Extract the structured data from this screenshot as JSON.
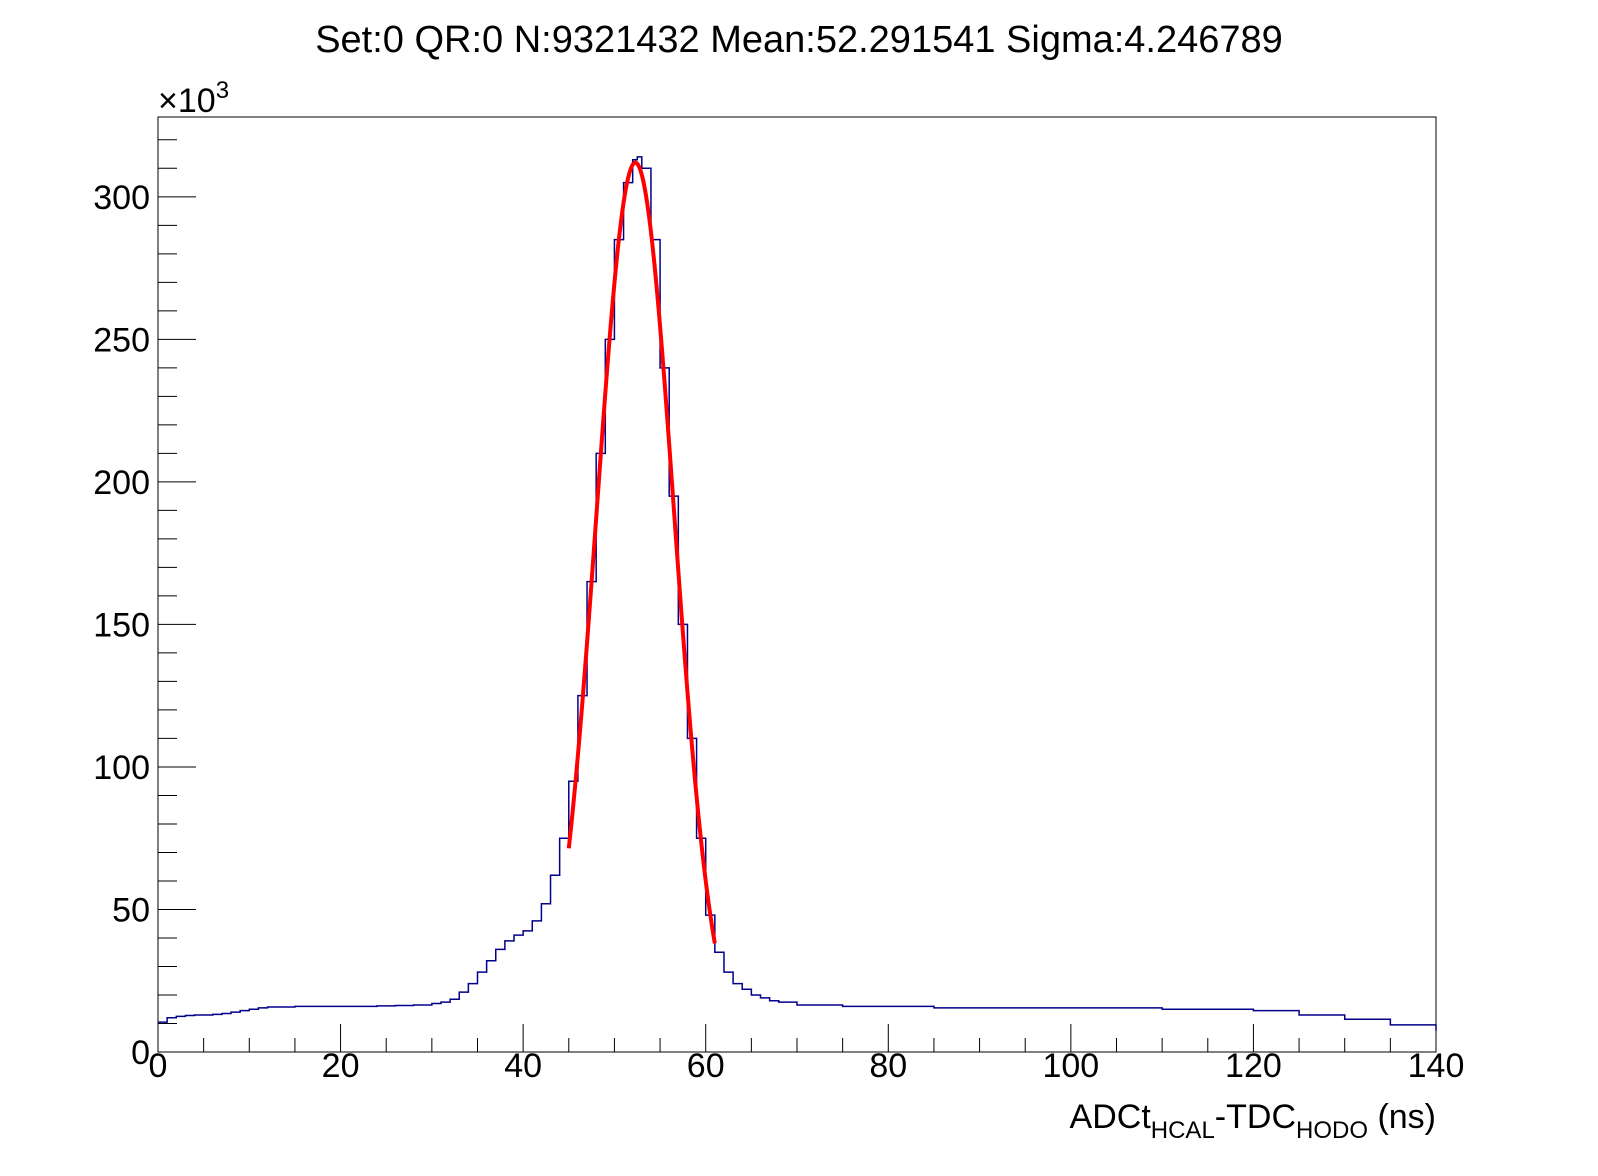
{
  "chart_data": {
    "type": "histogram",
    "title": "Set:0 QR:0 N:9321432 Mean:52.291541 Sigma:4.246789",
    "xlabel": {
      "parts": [
        {
          "text": "ADCt",
          "sub": false
        },
        {
          "text": "HCAL",
          "sub": true
        },
        {
          "text": "-TDC",
          "sub": false
        },
        {
          "text": "HODO",
          "sub": true
        },
        {
          "text": " (ns)",
          "sub": false
        }
      ]
    },
    "ylabel": "",
    "y_multiplier": {
      "base": "×10",
      "exp": "3"
    },
    "xlim": [
      0,
      140
    ],
    "ylim": [
      0,
      328
    ],
    "x_ticks": [
      0,
      20,
      40,
      60,
      80,
      100,
      120,
      140
    ],
    "x_tick_labels": [
      "0",
      "20",
      "40",
      "60",
      "80",
      "100",
      "120",
      "140"
    ],
    "y_ticks": [
      0,
      50,
      100,
      150,
      200,
      250,
      300
    ],
    "y_tick_labels": [
      "0",
      "50",
      "100",
      "150",
      "200",
      "250",
      "300"
    ],
    "grid": false,
    "legend": "none",
    "series": [
      {
        "kind": "step-histogram",
        "color": "#00008b",
        "x": [
          0,
          1,
          2,
          3,
          4,
          5,
          6,
          7,
          8,
          9,
          10,
          11,
          12,
          13,
          14,
          15,
          16,
          17,
          18,
          19,
          20,
          22,
          24,
          26,
          28,
          30,
          31,
          32,
          33,
          34,
          35,
          36,
          37,
          38,
          39,
          40,
          41,
          42,
          43,
          44,
          45,
          46,
          47,
          48,
          49,
          50,
          51,
          52,
          52.5,
          53,
          54,
          55,
          56,
          57,
          58,
          59,
          60,
          61,
          62,
          63,
          64,
          65,
          66,
          67,
          68,
          70,
          75,
          80,
          85,
          90,
          95,
          100,
          105,
          110,
          115,
          120,
          125,
          130,
          135,
          140
        ],
        "y": [
          10.5,
          12,
          12.5,
          12.8,
          13,
          13,
          13.2,
          13.5,
          14,
          14.5,
          15,
          15.5,
          15.8,
          15.8,
          15.8,
          16,
          16,
          16,
          16,
          16,
          16,
          16,
          16.2,
          16.3,
          16.5,
          17,
          17.5,
          18.5,
          21,
          24,
          28,
          32,
          36,
          39,
          41,
          42.5,
          46,
          52,
          62,
          75,
          95,
          125,
          165,
          210,
          250,
          285,
          305,
          313,
          314,
          310,
          285,
          240,
          195,
          150,
          110,
          75,
          48,
          35,
          28,
          24,
          22,
          20,
          19,
          18,
          17.5,
          16.5,
          16,
          16,
          15.5,
          15.5,
          15.5,
          15.5,
          15.5,
          15,
          15,
          14.5,
          13,
          11.5,
          9.5,
          7.5
        ]
      },
      {
        "kind": "gaussian-fit",
        "color": "#ff0000",
        "amplitude": 312,
        "mean": 52.291541,
        "sigma": 4.246789,
        "xrange": [
          45,
          61
        ]
      }
    ]
  }
}
